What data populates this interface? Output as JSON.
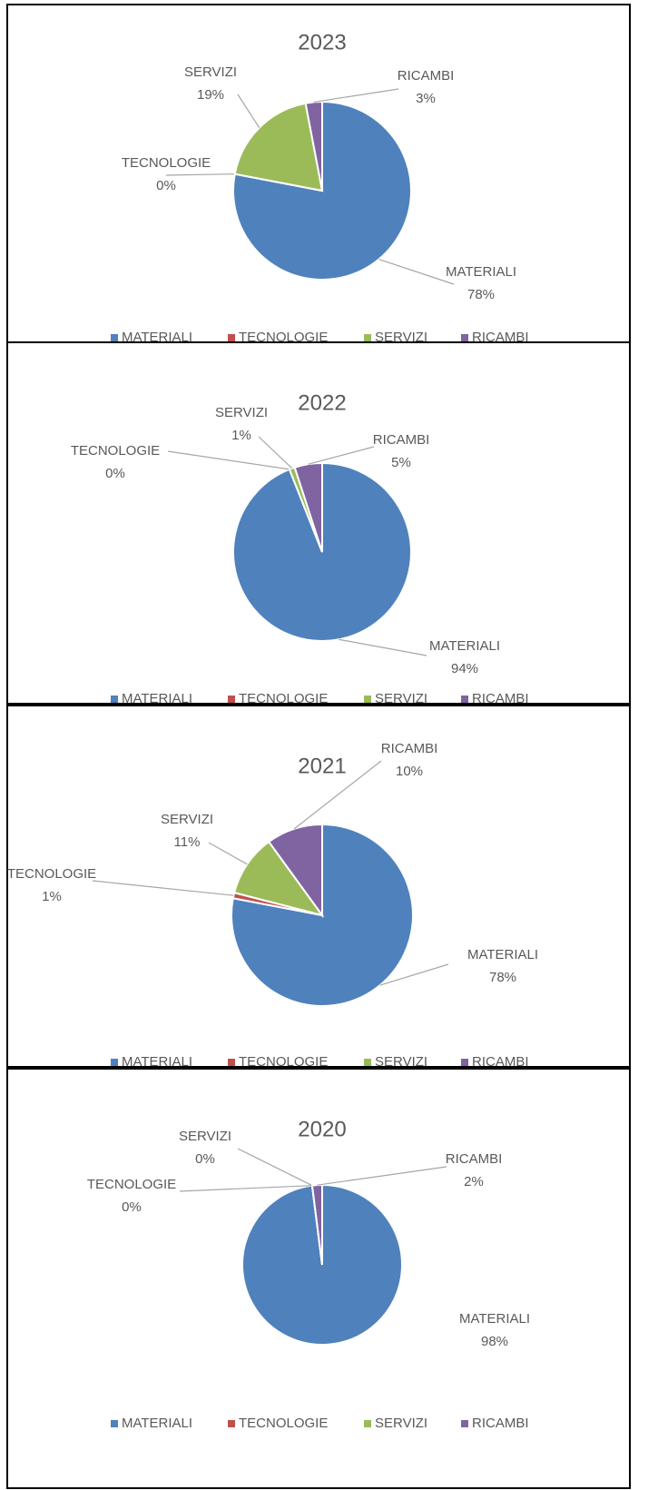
{
  "chart_data": [
    {
      "type": "pie",
      "title": "2023",
      "categories": [
        "MATERIALI",
        "TECNOLOGIE",
        "SERVIZI",
        "RICAMBI"
      ],
      "values": [
        78,
        0,
        19,
        3
      ],
      "value_labels": [
        "78%",
        "0%",
        "19%",
        "3%"
      ],
      "colors": [
        "#4f81bd",
        "#c0504d",
        "#9bbb59",
        "#8064a2"
      ],
      "legend": "bottom"
    },
    {
      "type": "pie",
      "title": "2022",
      "categories": [
        "MATERIALI",
        "TECNOLOGIE",
        "SERVIZI",
        "RICAMBI"
      ],
      "values": [
        94,
        0,
        1,
        5
      ],
      "value_labels": [
        "94%",
        "0%",
        "1%",
        "5%"
      ],
      "colors": [
        "#4f81bd",
        "#c0504d",
        "#9bbb59",
        "#8064a2"
      ],
      "legend": "bottom"
    },
    {
      "type": "pie",
      "title": "2021",
      "categories": [
        "MATERIALI",
        "TECNOLOGIE",
        "SERVIZI",
        "RICAMBI"
      ],
      "values": [
        78,
        1,
        11,
        10
      ],
      "value_labels": [
        "78%",
        "1%",
        "11%",
        "10%"
      ],
      "colors": [
        "#4f81bd",
        "#c0504d",
        "#9bbb59",
        "#8064a2"
      ],
      "legend": "bottom"
    },
    {
      "type": "pie",
      "title": "2020",
      "categories": [
        "MATERIALI",
        "TECNOLOGIE",
        "SERVIZI",
        "RICAMBI"
      ],
      "values": [
        98,
        0,
        0,
        2
      ],
      "value_labels": [
        "98%",
        "0%",
        "0%",
        "2%"
      ],
      "colors": [
        "#4f81bd",
        "#c0504d",
        "#9bbb59",
        "#8064a2"
      ],
      "legend": "bottom"
    }
  ]
}
